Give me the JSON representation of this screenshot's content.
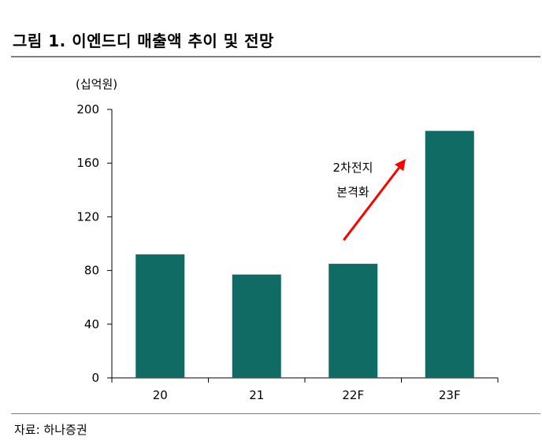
{
  "title": "그림 1. 이엔드디 매출액 추이 및 전망",
  "source": "자료: 하나증권",
  "chart_data": {
    "type": "bar",
    "title": "그림 1. 이엔드디 매출액 추이 및 전망",
    "unit_label": "(십억원)",
    "categories": [
      "20",
      "21",
      "22F",
      "23F"
    ],
    "values": [
      92,
      77,
      85,
      184
    ],
    "ylim": [
      0,
      200
    ],
    "yticks": [
      0,
      40,
      80,
      120,
      160,
      200
    ],
    "xlabel": "",
    "ylabel": "",
    "grid": false,
    "bar_color": "#0f6b63",
    "annotation": {
      "lines": [
        "2차전지",
        "본격화"
      ],
      "arrow_color": "#ff0000"
    }
  }
}
